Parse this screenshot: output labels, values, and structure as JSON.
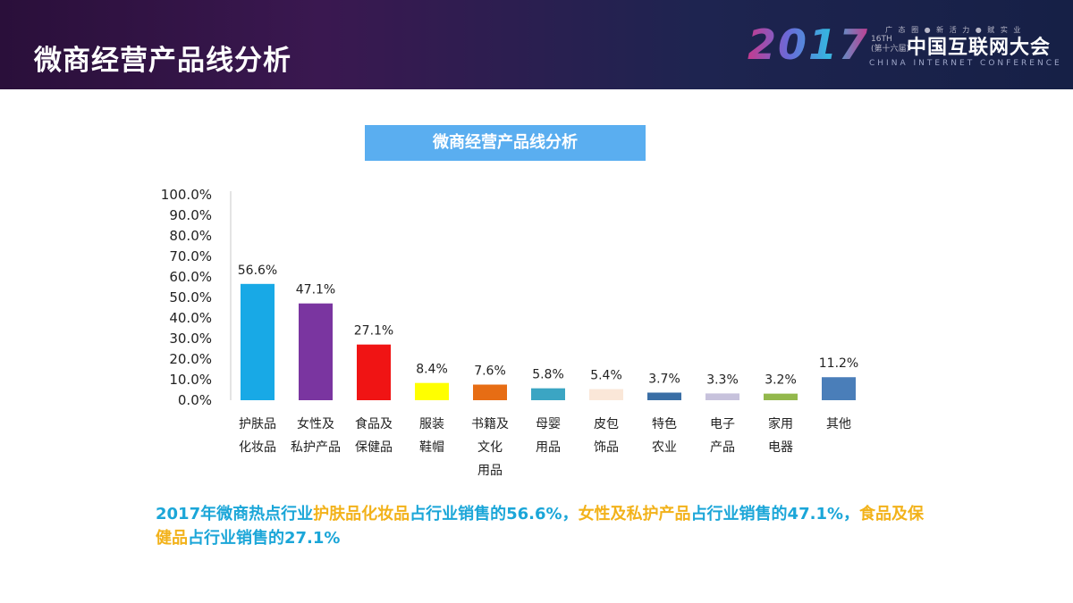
{
  "header": {
    "title": "微商经营产品线分析",
    "logo": {
      "year": "2017",
      "tagline": "广 态 圈 ● 新 活 力 ● 赋 实 业",
      "edition_line1": "16TH",
      "edition_line2": "(第十六届)",
      "name": "中国互联网大会",
      "english": "CHINA INTERNET CONFERENCE"
    }
  },
  "chart_banner": "微商经营产品线分析",
  "chart_data": {
    "type": "bar",
    "categories": [
      [
        "护肤品",
        "化妆品"
      ],
      [
        "女性及",
        "私护产品"
      ],
      [
        "食品及",
        "保健品"
      ],
      [
        "服装",
        "鞋帽"
      ],
      [
        "书籍及",
        "文化",
        "用品"
      ],
      [
        "母婴",
        "用品"
      ],
      [
        "皮包",
        "饰品"
      ],
      [
        "特色",
        "农业"
      ],
      [
        "电子",
        "产品"
      ],
      [
        "家用",
        "电器"
      ],
      [
        "其他"
      ]
    ],
    "values": [
      56.6,
      47.1,
      27.1,
      8.4,
      7.6,
      5.8,
      5.4,
      3.7,
      3.3,
      3.2,
      11.2
    ],
    "data_labels": [
      "56.6%",
      "47.1%",
      "27.1%",
      "8.4%",
      "7.6%",
      "5.8%",
      "5.4%",
      "3.7%",
      "3.3%",
      "3.2%",
      "11.2%"
    ],
    "colors": [
      "#18a9e6",
      "#7a35a0",
      "#f01414",
      "#ffff00",
      "#e76d14",
      "#3ba5c3",
      "#fae7d8",
      "#3a6ea5",
      "#c7c2dc",
      "#93b84c",
      "#4a7eb9"
    ],
    "yticks": [
      "0.0%",
      "10.0%",
      "20.0%",
      "30.0%",
      "40.0%",
      "50.0%",
      "60.0%",
      "70.0%",
      "80.0%",
      "90.0%",
      "100.0%"
    ],
    "ylim": [
      0,
      100
    ],
    "grid": false,
    "title": "微商经营产品线分析"
  },
  "summary": {
    "p1": "2017年微商热点行业",
    "p2": "护肤品化妆品",
    "p3": "占行业销售的56.6%，",
    "p4": "女性及私护产品",
    "p5": "占行业销售的47.1%，",
    "p6": "食品及保健品",
    "p7": "占行业销售的27.1%"
  }
}
